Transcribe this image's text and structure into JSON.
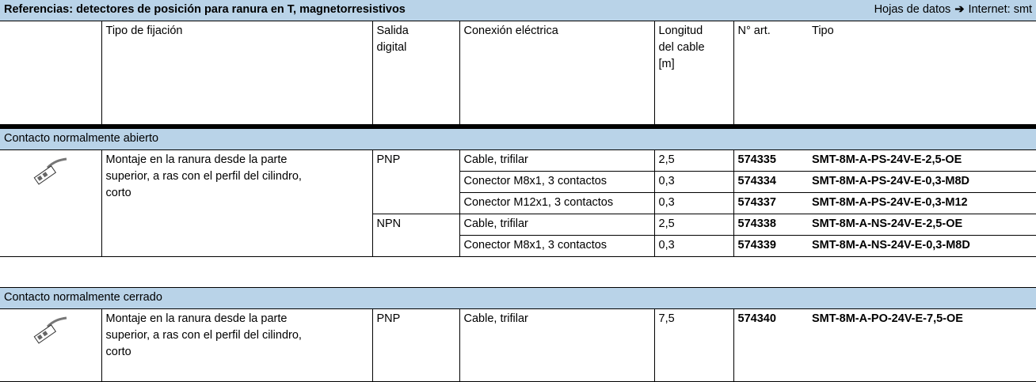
{
  "header": {
    "title": "Referencias: detectores de posición para ranura en T, magnetorresistivos",
    "datasheet": "Hojas de datos",
    "internet": "Internet: smt"
  },
  "columns": [
    [
      "Tipo de fijación"
    ],
    [
      "Salida",
      "digital"
    ],
    [
      "Conexión eléctrica"
    ],
    [
      "Longitud",
      "del cable",
      "[m]"
    ],
    [
      "N° art."
    ],
    [
      "Tipo"
    ]
  ],
  "sections": [
    {
      "title": "Contacto normalmente abierto",
      "mounting": [
        "Montaje en la ranura desde la parte",
        "superior, a ras con el perfil del cilindro,",
        "corto"
      ],
      "groups": [
        {
          "output": "PNP",
          "rows": [
            {
              "connection": "Cable, trifilar",
              "length": "2,5",
              "part": "574335",
              "type": "SMT-8M-A-PS-24V-E-2,5-OE"
            },
            {
              "connection": "Conector M8x1, 3 contactos",
              "length": "0,3",
              "part": "574334",
              "type": "SMT-8M-A-PS-24V-E-0,3-M8D"
            },
            {
              "connection": "Conector M12x1, 3 contactos",
              "length": "0,3",
              "part": "574337",
              "type": "SMT-8M-A-PS-24V-E-0,3-M12"
            }
          ]
        },
        {
          "output": "NPN",
          "rows": [
            {
              "connection": "Cable, trifilar",
              "length": "2,5",
              "part": "574338",
              "type": "SMT-8M-A-NS-24V-E-2,5-OE"
            },
            {
              "connection": "Conector M8x1, 3 contactos",
              "length": "0,3",
              "part": "574339",
              "type": "SMT-8M-A-NS-24V-E-0,3-M8D"
            }
          ]
        }
      ]
    },
    {
      "title": "Contacto normalmente cerrado",
      "mounting": [
        "Montaje en la ranura desde la parte",
        "superior, a ras con el perfil del cilindro,",
        "corto"
      ],
      "groups": [
        {
          "output": "PNP",
          "rows": [
            {
              "connection": "Cable, trifilar",
              "length": "7,5",
              "part": "574340",
              "type": "SMT-8M-A-PO-24V-E-7,5-OE"
            }
          ]
        }
      ]
    }
  ]
}
